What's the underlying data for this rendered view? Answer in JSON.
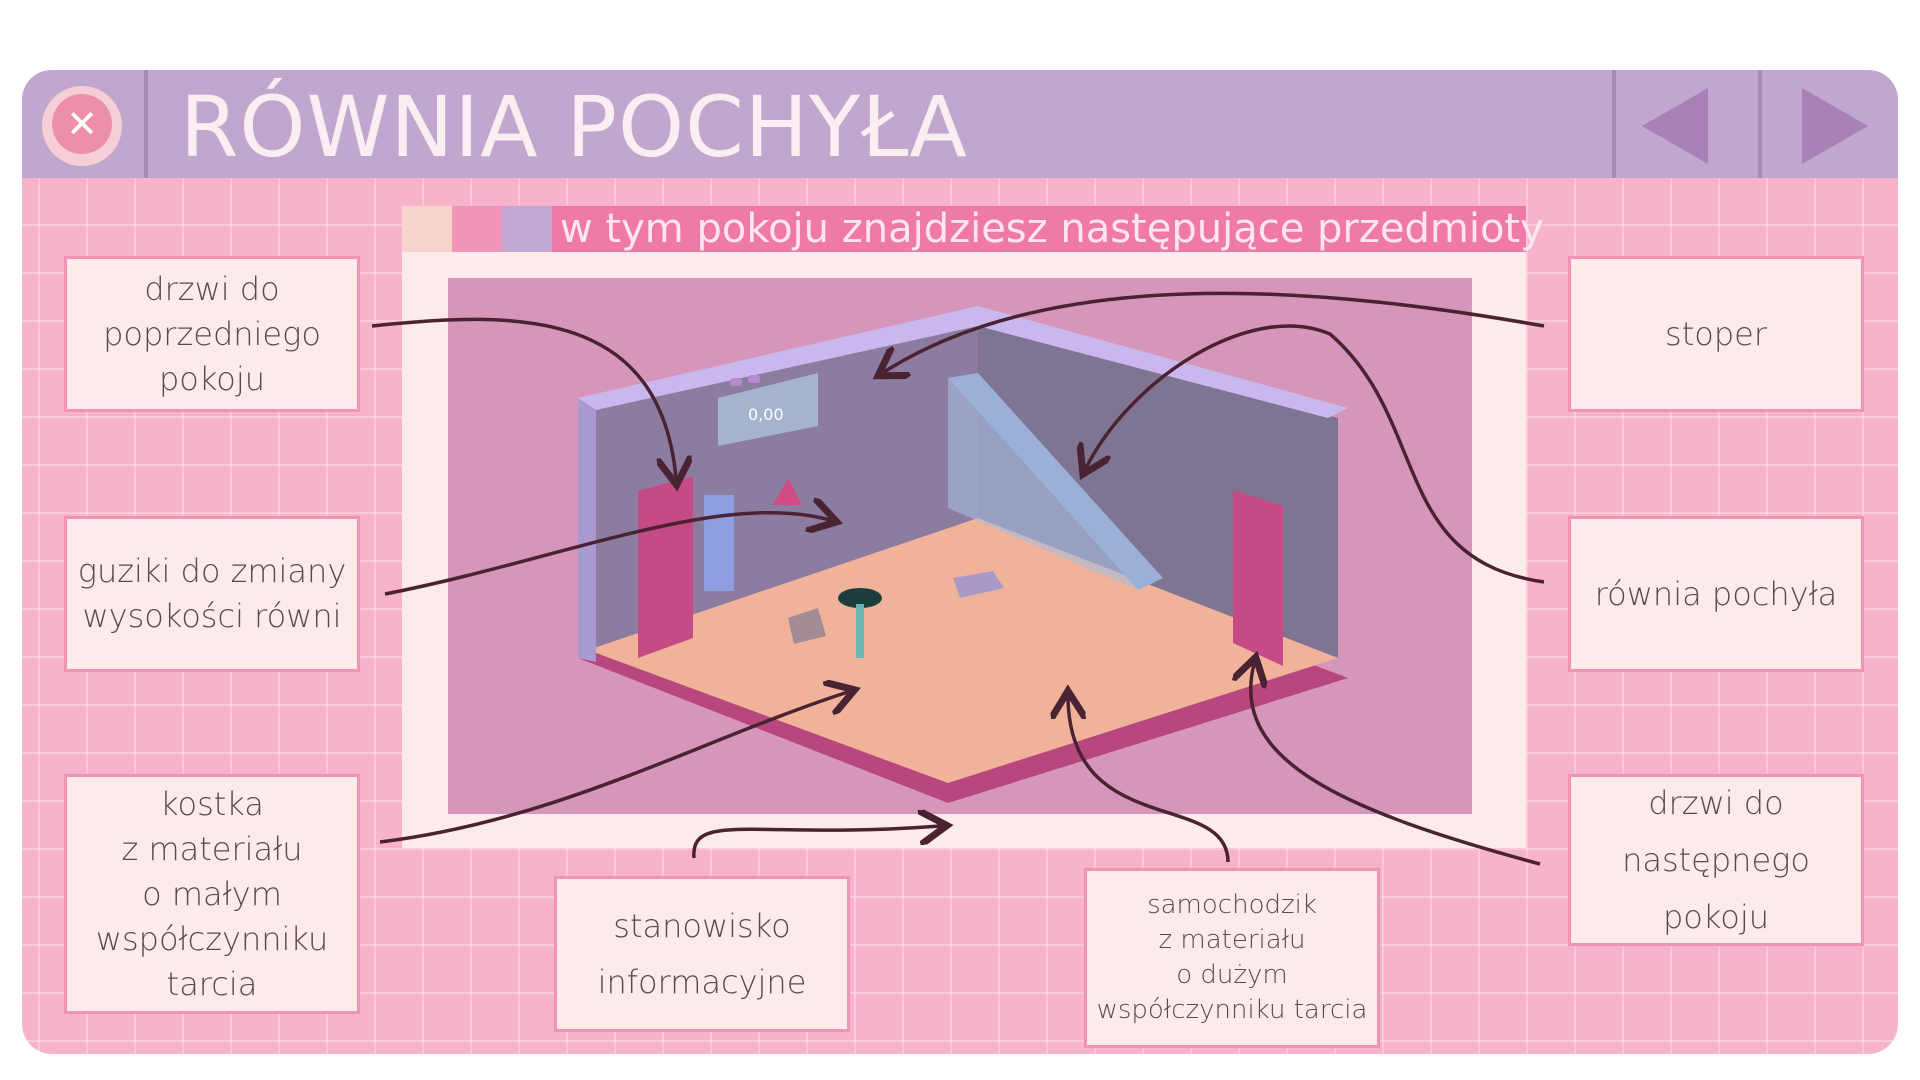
{
  "window": {
    "title": "RÓWNIA POCHYŁA",
    "close_icon": "close-icon",
    "prev_icon": "arrow-left-icon",
    "next_icon": "arrow-right-icon"
  },
  "panel": {
    "header": "w tym pokoju znajdziesz następujące przedmioty"
  },
  "scene": {
    "timer_display": "0,00"
  },
  "labels": {
    "prev_door": [
      "drzwi do",
      "poprzedniego",
      "pokoju"
    ],
    "height_buttons": [
      "guziki do zmiany",
      "wysokości równi"
    ],
    "cube": [
      "kostka",
      "z materiału",
      "o małym",
      "współczynniku",
      "tarcia"
    ],
    "info_station": [
      "stanowisko",
      "informacyjne"
    ],
    "car": [
      "samochodzik",
      "z materiału",
      "o dużym",
      "współczynniku tarcia"
    ],
    "stopwatch": [
      "stoper"
    ],
    "incline": [
      "równia pochyła"
    ],
    "next_door": [
      "drzwi do",
      "następnego",
      "pokoju"
    ]
  },
  "colors": {
    "background_pink": "#f7b3cc",
    "titlebar": "#c1a6cd",
    "header_bar": "#f07aa7",
    "label_bg": "#fdeaea",
    "label_border": "#ef94b6",
    "arrow": "#4a2332"
  }
}
